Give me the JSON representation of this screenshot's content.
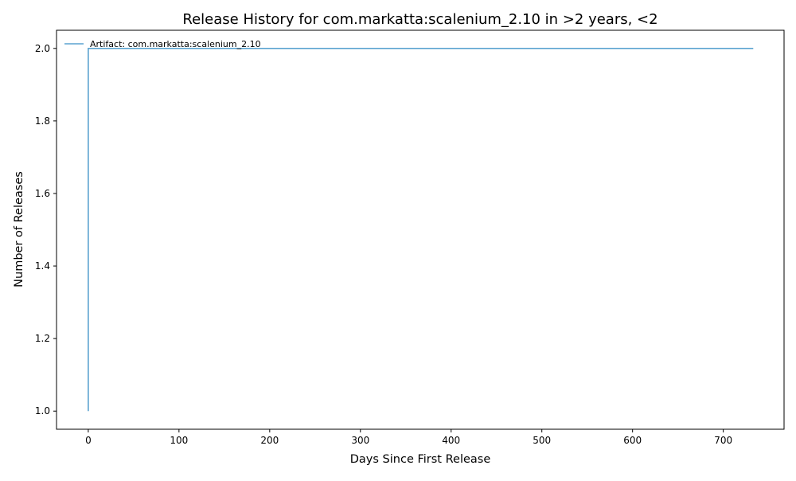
{
  "chart_data": {
    "type": "line",
    "title": "Release History for com.markatta:scalenium_2.10 in >2 years, <2",
    "xlabel": "Days Since First Release",
    "ylabel": "Number of Releases",
    "xlim": [
      -35,
      767
    ],
    "ylim": [
      0.95,
      2.05
    ],
    "xticks": [
      0,
      100,
      200,
      300,
      400,
      500,
      600,
      700
    ],
    "xtick_labels": [
      "0",
      "100",
      "200",
      "300",
      "400",
      "500",
      "600",
      "700"
    ],
    "yticks": [
      1.0,
      1.2,
      1.4,
      1.6,
      1.8,
      2.0
    ],
    "ytick_labels": [
      "1.0",
      "1.2",
      "1.4",
      "1.6",
      "1.8",
      "2.0"
    ],
    "grid": false,
    "legend_position": "top-left",
    "series": [
      {
        "name": "Artifact: com.markatta:scalenium_2.10",
        "color": "#5ba3d0",
        "step": "post",
        "x": [
          0,
          0,
          733
        ],
        "y": [
          1,
          2,
          2
        ]
      }
    ]
  }
}
